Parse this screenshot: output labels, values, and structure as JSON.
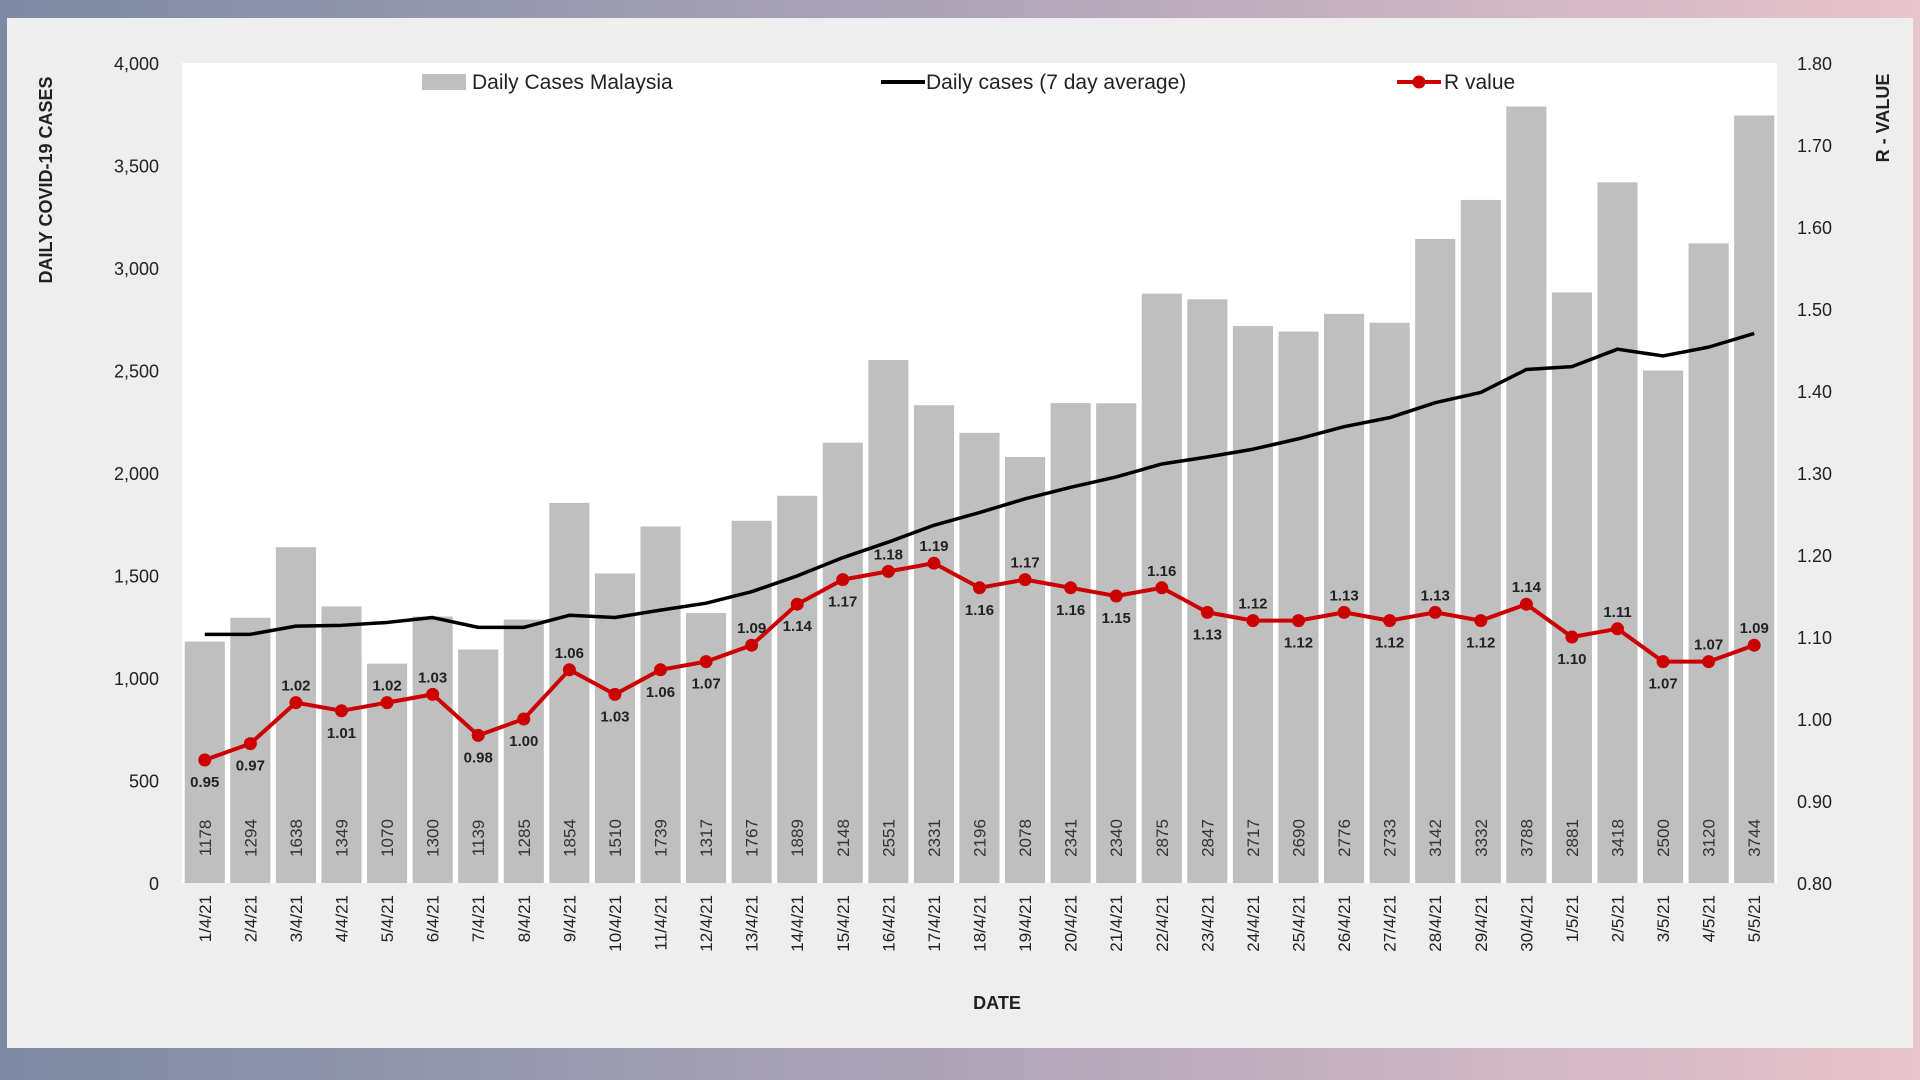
{
  "chart_data": {
    "type": "bar",
    "categories": [
      "1/4/21",
      "2/4/21",
      "3/4/21",
      "4/4/21",
      "5/4/21",
      "6/4/21",
      "7/4/21",
      "8/4/21",
      "9/4/21",
      "10/4/21",
      "11/4/21",
      "12/4/21",
      "13/4/21",
      "14/4/21",
      "15/4/21",
      "16/4/21",
      "17/4/21",
      "18/4/21",
      "19/4/21",
      "20/4/21",
      "21/4/21",
      "22/4/21",
      "23/4/21",
      "24/4/21",
      "25/4/21",
      "26/4/21",
      "27/4/21",
      "28/4/21",
      "29/4/21",
      "30/4/21",
      "1/5/21",
      "2/5/21",
      "3/5/21",
      "4/5/21",
      "5/5/21"
    ],
    "series": [
      {
        "name": "Daily Cases Malaysia",
        "type": "bar",
        "axis": "left",
        "color": "#bfbfbf",
        "values": [
          1178,
          1294,
          1638,
          1349,
          1070,
          1300,
          1139,
          1285,
          1854,
          1510,
          1739,
          1317,
          1767,
          1889,
          2148,
          2551,
          2331,
          2196,
          2078,
          2341,
          2340,
          2875,
          2847,
          2717,
          2690,
          2776,
          2733,
          3142,
          3332,
          3788,
          2881,
          3418,
          2500,
          3120,
          3744
        ]
      },
      {
        "name": "Daily cases (7 day average)",
        "type": "line",
        "axis": "left",
        "color": "#000000",
        "values": [
          1213,
          1213,
          1253,
          1257,
          1271,
          1295,
          1247,
          1247,
          1306,
          1295,
          1331,
          1365,
          1421,
          1498,
          1587,
          1663,
          1745,
          1807,
          1874,
          1930,
          1981,
          2044,
          2078,
          2116,
          2167,
          2226,
          2270,
          2343,
          2393,
          2505,
          2519,
          2604,
          2571,
          2614,
          2681
        ]
      },
      {
        "name": "R value",
        "type": "line",
        "axis": "right",
        "color": "#cc0000",
        "values": [
          0.95,
          0.97,
          1.02,
          1.01,
          1.02,
          1.03,
          0.98,
          1.0,
          1.06,
          1.03,
          1.06,
          1.07,
          1.09,
          1.14,
          1.17,
          1.18,
          1.19,
          1.16,
          1.17,
          1.16,
          1.15,
          1.16,
          1.13,
          1.12,
          1.12,
          1.13,
          1.12,
          1.13,
          1.12,
          1.14,
          1.1,
          1.11,
          1.07,
          1.07,
          1.09
        ],
        "labels": [
          "0.95",
          "0.97",
          "1.02",
          "1.01",
          "1.02",
          "1.03",
          "0.98",
          "1.00",
          "1.06",
          "1.03",
          "1.06",
          "1.07",
          "1.09",
          "1.14",
          "1.17",
          "1.18",
          "1.19",
          "1.16",
          "1.17",
          "1.16",
          "1.15",
          "1.16",
          "1.13",
          "1.12",
          "1.12",
          "1.13",
          "1.12",
          "1.13",
          "1.12",
          "1.14",
          "1.10",
          "1.11",
          "1.07",
          "1.07",
          "1.09"
        ],
        "label_above": [
          false,
          false,
          true,
          false,
          true,
          true,
          false,
          false,
          true,
          false,
          false,
          false,
          true,
          false,
          false,
          true,
          true,
          false,
          true,
          false,
          false,
          true,
          false,
          true,
          false,
          true,
          false,
          true,
          false,
          true,
          false,
          true,
          false,
          true,
          true
        ]
      }
    ],
    "xlabel": "DATE",
    "ylabel": "DAILY COVID-19 CASES",
    "y2label": "R - VALUE",
    "ylim": [
      0,
      4000
    ],
    "y2lim": [
      0.8,
      1.8
    ],
    "yticks": [
      "0",
      "500",
      "1,000",
      "1,500",
      "2,000",
      "2,500",
      "3,000",
      "3,500",
      "4,000"
    ],
    "y2ticks": [
      "0.80",
      "0.90",
      "1.00",
      "1.10",
      "1.20",
      "1.30",
      "1.40",
      "1.50",
      "1.60",
      "1.70",
      "1.80"
    ],
    "grid": false,
    "legend": "top"
  }
}
